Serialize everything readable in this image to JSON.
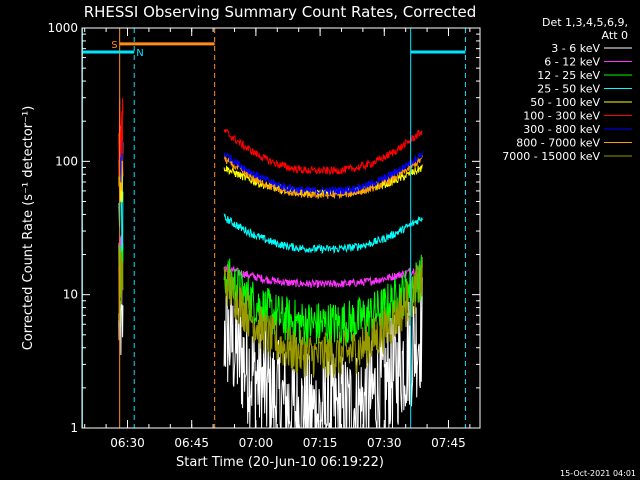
{
  "chart_data": {
    "type": "line",
    "title": "RHESSI Observing Summary Count Rates, Corrected",
    "xlabel": "Start Time (20-Jun-10 06:19:22)",
    "ylabel": "Corrected Count Rate (s⁻¹ detector⁻¹)",
    "yscale": "log",
    "ylim": [
      1,
      1000
    ],
    "xlim_minutes": [
      0,
      93
    ],
    "x_ticks": [
      "06:30",
      "06:45",
      "07:00",
      "07:15",
      "07:30",
      "07:45"
    ],
    "y_ticks": [
      "1",
      "10",
      "100",
      "1000"
    ],
    "legend_header": [
      "Det 1,3,4,5,6,9,",
      "Att 0"
    ],
    "legend_position": "right",
    "series": [
      {
        "name": "3 - 6 keV",
        "color": "#ffffff",
        "edge": 5.5,
        "min": 1.3
      },
      {
        "name": "6 - 12 keV",
        "color": "#ff33ff",
        "edge": 16,
        "min": 12
      },
      {
        "name": "12 - 25 keV",
        "color": "#00ff00",
        "edge": 14,
        "min": 6
      },
      {
        "name": "25 - 50 keV",
        "color": "#00ffff",
        "edge": 38,
        "min": 22
      },
      {
        "name": "50 - 100 keV",
        "color": "#ffff00",
        "edge": 90,
        "min": 58
      },
      {
        "name": "100 - 300 keV",
        "color": "#ff0000",
        "edge": 170,
        "min": 85
      },
      {
        "name": "300 - 800 keV",
        "color": "#0000ff",
        "edge": 115,
        "min": 60
      },
      {
        "name": "800 - 7000 keV",
        "color": "#ff9900",
        "edge": 105,
        "min": 56
      },
      {
        "name": "7000 - 15000 keV",
        "color": "#999900",
        "edge": 13,
        "min": 3.5
      }
    ],
    "annotations": {
      "saa_label": "S",
      "night_label": "N",
      "saa_color": "#ff8c1a",
      "night_color": "#00e5ff"
    }
  },
  "timestamp": "15-Oct-2021 04:01"
}
